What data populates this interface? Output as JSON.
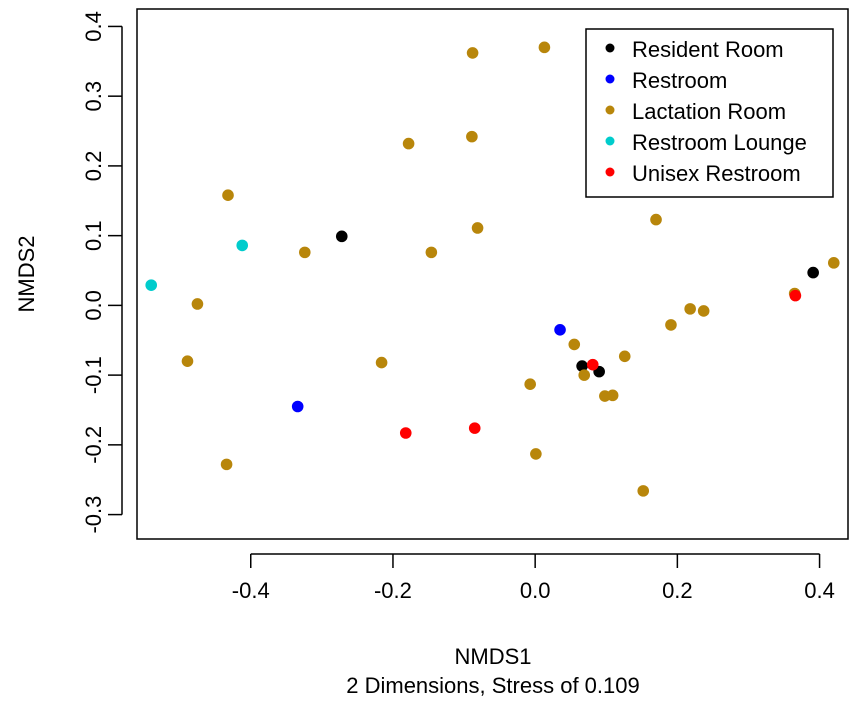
{
  "chart_data": {
    "type": "scatter",
    "xlabel": "NMDS1",
    "ylabel": "NMDS2",
    "subtitle": "2 Dimensions, Stress of 0.109",
    "xlim": [
      -0.56,
      0.44
    ],
    "ylim": [
      -0.335,
      0.425
    ],
    "x_ticks": [
      -0.4,
      -0.2,
      0.0,
      0.2,
      0.4
    ],
    "x_tick_labels": [
      "-0.4",
      "-0.2",
      "0.0",
      "0.2",
      "0.4"
    ],
    "y_ticks": [
      -0.3,
      -0.2,
      -0.1,
      0.0,
      0.1,
      0.2,
      0.3,
      0.4
    ],
    "y_tick_labels": [
      "-0.3",
      "-0.2",
      "-0.1",
      "0.0",
      "0.1",
      "0.2",
      "0.3",
      "0.4"
    ],
    "grid": false,
    "legend_position": "top-right",
    "series": [
      {
        "name": "Resident Room",
        "color": "#000000",
        "points": [
          [
            -0.272,
            0.099
          ],
          [
            0.066,
            -0.087
          ],
          [
            0.09,
            -0.095
          ],
          [
            0.391,
            0.047
          ]
        ]
      },
      {
        "name": "Restroom",
        "color": "#0000ff",
        "points": [
          [
            0.035,
            -0.035
          ],
          [
            -0.334,
            -0.145
          ]
        ]
      },
      {
        "name": "Lactation Room",
        "color": "#b8860b",
        "points": [
          [
            0.013,
            0.37
          ],
          [
            -0.088,
            0.362
          ],
          [
            -0.089,
            0.242
          ],
          [
            -0.178,
            0.232
          ],
          [
            -0.432,
            0.158
          ],
          [
            0.17,
            0.123
          ],
          [
            -0.081,
            0.111
          ],
          [
            -0.324,
            0.076
          ],
          [
            -0.146,
            0.076
          ],
          [
            0.42,
            0.061
          ],
          [
            0.365,
            0.017
          ],
          [
            -0.475,
            0.002
          ],
          [
            0.218,
            -0.005
          ],
          [
            0.237,
            -0.008
          ],
          [
            0.191,
            -0.028
          ],
          [
            0.055,
            -0.056
          ],
          [
            -0.489,
            -0.08
          ],
          [
            -0.216,
            -0.082
          ],
          [
            0.126,
            -0.073
          ],
          [
            0.069,
            -0.1
          ],
          [
            -0.007,
            -0.113
          ],
          [
            0.098,
            -0.13
          ],
          [
            0.109,
            -0.129
          ],
          [
            0.001,
            -0.213
          ],
          [
            -0.434,
            -0.228
          ],
          [
            0.152,
            -0.266
          ]
        ]
      },
      {
        "name": "Restroom Lounge",
        "color": "#00cccc",
        "points": [
          [
            -0.54,
            0.029
          ],
          [
            -0.412,
            0.086
          ]
        ]
      },
      {
        "name": "Unisex Restroom",
        "color": "#ff0000",
        "points": [
          [
            0.081,
            -0.085
          ],
          [
            0.366,
            0.014
          ],
          [
            -0.182,
            -0.183
          ],
          [
            -0.085,
            -0.176
          ]
        ]
      }
    ]
  }
}
